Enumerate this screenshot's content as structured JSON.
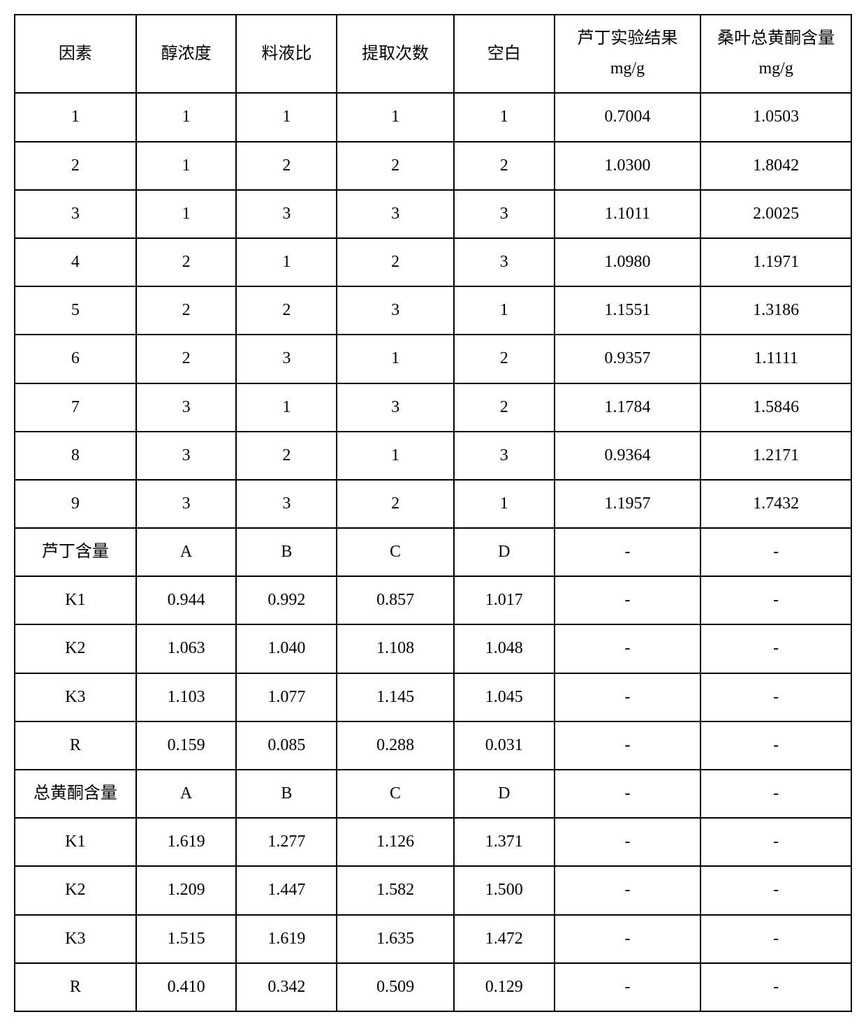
{
  "table": {
    "type": "table",
    "background_color": "#ffffff",
    "border_color": "#000000",
    "border_width": 2,
    "text_color": "#000000",
    "font_size": 24,
    "font_family": "SimSun, Times New Roman, serif",
    "column_widths_percent": [
      14.5,
      12,
      12,
      14,
      12,
      17.5,
      18
    ],
    "header_row_height": 100,
    "data_row_height": 60,
    "columns": [
      "因素",
      "醇浓度",
      "料液比",
      "提取次数",
      "空白",
      "芦丁实验结果 mg/g",
      "桑叶总黄酮含量 mg/g"
    ],
    "rows": [
      [
        "1",
        "1",
        "1",
        "1",
        "1",
        "0.7004",
        "1.0503"
      ],
      [
        "2",
        "1",
        "2",
        "2",
        "2",
        "1.0300",
        "1.8042"
      ],
      [
        "3",
        "1",
        "3",
        "3",
        "3",
        "1.1011",
        "2.0025"
      ],
      [
        "4",
        "2",
        "1",
        "2",
        "3",
        "1.0980",
        "1.1971"
      ],
      [
        "5",
        "2",
        "2",
        "3",
        "1",
        "1.1551",
        "1.3186"
      ],
      [
        "6",
        "2",
        "3",
        "1",
        "2",
        "0.9357",
        "1.1111"
      ],
      [
        "7",
        "3",
        "1",
        "3",
        "2",
        "1.1784",
        "1.5846"
      ],
      [
        "8",
        "3",
        "2",
        "1",
        "3",
        "0.9364",
        "1.2171"
      ],
      [
        "9",
        "3",
        "3",
        "2",
        "1",
        "1.1957",
        "1.7432"
      ],
      [
        "芦丁含量",
        "A",
        "B",
        "C",
        "D",
        "-",
        "-"
      ],
      [
        "K1",
        "0.944",
        "0.992",
        "0.857",
        "1.017",
        "-",
        "-"
      ],
      [
        "K2",
        "1.063",
        "1.040",
        "1.108",
        "1.048",
        "-",
        "-"
      ],
      [
        "K3",
        "1.103",
        "1.077",
        "1.145",
        "1.045",
        "-",
        "-"
      ],
      [
        "R",
        "0.159",
        "0.085",
        "0.288",
        "0.031",
        "-",
        "-"
      ],
      [
        "总黄酮含量",
        "A",
        "B",
        "C",
        "D",
        "-",
        "-"
      ],
      [
        "K1",
        "1.619",
        "1.277",
        "1.126",
        "1.371",
        "-",
        "-"
      ],
      [
        "K2",
        "1.209",
        "1.447",
        "1.582",
        "1.500",
        "-",
        "-"
      ],
      [
        "K3",
        "1.515",
        "1.619",
        "1.635",
        "1.472",
        "-",
        "-"
      ],
      [
        "R",
        "0.410",
        "0.342",
        "0.509",
        "0.129",
        "-",
        "-"
      ]
    ]
  }
}
